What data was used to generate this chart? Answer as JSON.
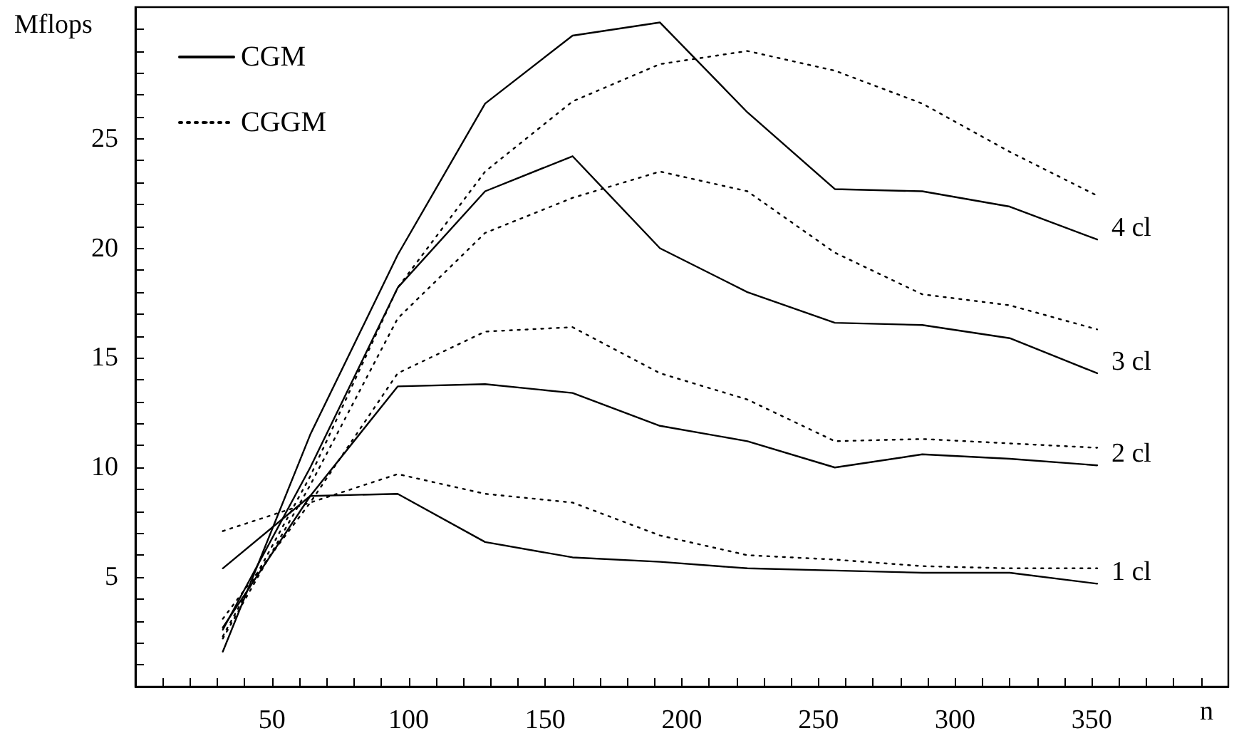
{
  "chart_data": {
    "type": "line",
    "xlabel": "n",
    "ylabel": "Mflops",
    "x": [
      32,
      64,
      96,
      128,
      160,
      192,
      224,
      256,
      288,
      320,
      352
    ],
    "series": [
      {
        "name": "CGM",
        "color": "#000000",
        "line_style": "solid",
        "values": [
          1.6,
          11.5,
          19.7,
          26.6,
          29.7,
          30.3,
          26.2,
          22.7,
          22.6,
          21.9,
          20.4
        ]
      },
      {
        "name": "CGGM",
        "color": "#000000",
        "line_style": "dotted",
        "values": [
          2.3,
          9.6,
          18.2,
          23.5,
          26.7,
          28.4,
          29.0,
          28.1,
          26.6,
          24.4,
          22.4
        ]
      },
      {
        "color": "#000000",
        "line_style": "solid",
        "values": [
          2.6,
          10.0,
          18.2,
          22.6,
          24.2,
          20.0,
          18.0,
          16.6,
          16.5,
          15.9,
          14.3
        ]
      },
      {
        "color": "#000000",
        "line_style": "dotted",
        "values": [
          2.2,
          9.2,
          16.8,
          20.7,
          22.3,
          23.5,
          22.6,
          19.8,
          17.9,
          17.4,
          16.3
        ]
      },
      {
        "color": "#000000",
        "line_style": "solid",
        "values": [
          2.7,
          8.7,
          13.7,
          13.8,
          13.4,
          11.9,
          11.2,
          10.0,
          10.6,
          10.4,
          10.1
        ]
      },
      {
        "color": "#000000",
        "line_style": "dotted",
        "values": [
          3.1,
          8.4,
          14.3,
          16.2,
          16.4,
          14.3,
          13.1,
          11.2,
          11.3,
          11.1,
          10.9
        ]
      },
      {
        "color": "#000000",
        "line_style": "solid",
        "values": [
          5.4,
          8.7,
          8.8,
          6.6,
          5.9,
          5.7,
          5.4,
          5.3,
          5.2,
          5.2,
          4.7
        ]
      },
      {
        "color": "#000000",
        "line_style": "dotted",
        "values": [
          7.1,
          8.4,
          9.7,
          8.8,
          8.4,
          6.9,
          6.0,
          5.8,
          5.5,
          5.4,
          5.4
        ]
      }
    ],
    "annotations": [
      "4 cl",
      "3 cl",
      "2 cl",
      "1 cl"
    ],
    "xlim": [
      0,
      400
    ],
    "xticks": [
      {
        "value": 10,
        "label": null
      },
      {
        "value": 20,
        "label": null
      },
      {
        "value": 30,
        "label": null
      },
      {
        "value": 40,
        "label": null
      },
      50,
      {
        "value": 60,
        "label": null
      },
      {
        "value": 70,
        "label": null
      },
      {
        "value": 80,
        "label": null
      },
      {
        "value": 90,
        "label": null
      },
      100,
      {
        "value": 110,
        "label": null
      },
      {
        "value": 120,
        "label": null
      },
      {
        "value": 130,
        "label": null
      },
      {
        "value": 140,
        "label": null
      },
      150,
      {
        "value": 160,
        "label": null
      },
      {
        "value": 170,
        "label": null
      },
      {
        "value": 180,
        "label": null
      },
      {
        "value": 190,
        "label": null
      },
      200,
      {
        "value": 210,
        "label": null
      },
      {
        "value": 220,
        "label": null
      },
      {
        "value": 230,
        "label": null
      },
      {
        "value": 240,
        "label": null
      },
      250,
      {
        "value": 260,
        "label": null
      },
      {
        "value": 270,
        "label": null
      },
      {
        "value": 280,
        "label": null
      },
      {
        "value": 290,
        "label": null
      },
      300,
      {
        "value": 310,
        "label": null
      },
      {
        "value": 320,
        "label": null
      },
      {
        "value": 330,
        "label": null
      },
      {
        "value": 340,
        "label": null
      },
      350,
      {
        "value": 360,
        "label": null
      },
      {
        "value": 370,
        "label": null
      },
      {
        "value": 380,
        "label": null
      },
      {
        "value": 390,
        "label": null
      }
    ],
    "ylim": [
      0,
      31
    ],
    "yticks": [
      {
        "value": 1,
        "label": null
      },
      {
        "value": 2,
        "label": null
      },
      {
        "value": 3,
        "label": null
      },
      {
        "value": 4,
        "label": null
      },
      5,
      {
        "value": 6,
        "label": null
      },
      {
        "value": 7,
        "label": null
      },
      {
        "value": 8,
        "label": null
      },
      {
        "value": 9,
        "label": null
      },
      10,
      {
        "value": 11,
        "label": null
      },
      {
        "value": 12,
        "label": null
      },
      {
        "value": 13,
        "label": null
      },
      {
        "value": 14,
        "label": null
      },
      15,
      {
        "value": 16,
        "label": null
      },
      {
        "value": 17,
        "label": null
      },
      {
        "value": 18,
        "label": null
      },
      {
        "value": 19,
        "label": null
      },
      20,
      {
        "value": 21,
        "label": null
      },
      {
        "value": 22,
        "label": null
      },
      {
        "value": 23,
        "label": null
      },
      {
        "value": 24,
        "label": null
      },
      25,
      {
        "value": 26,
        "label": null
      },
      {
        "value": 27,
        "label": null
      },
      {
        "value": 28,
        "label": null
      },
      {
        "value": 29,
        "label": null
      },
      {
        "value": 30,
        "label": null
      }
    ],
    "grid": false,
    "legend": "top left",
    "marker": "none"
  }
}
